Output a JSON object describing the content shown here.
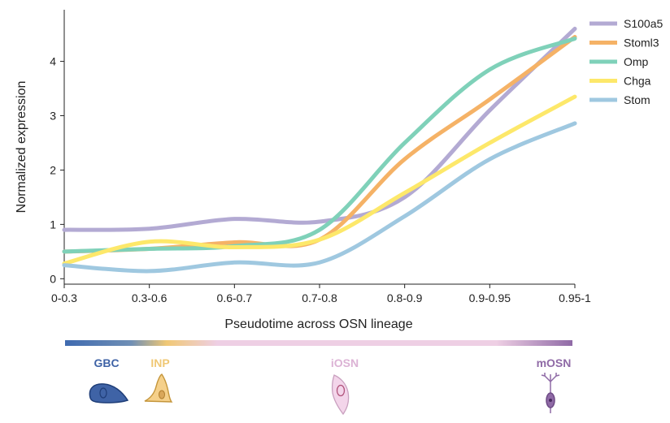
{
  "chart_data": {
    "type": "line",
    "xlabel": "Pseudotime across OSN lineage",
    "ylabel": "Normalized expression",
    "categories": [
      "0-0.3",
      "0.3-0.6",
      "0.6-0.7",
      "0.7-0.8",
      "0.8-0.9",
      "0.9-0.95",
      "0.95-1"
    ],
    "ylim": [
      -0.1,
      4.95
    ],
    "yticks": [
      0,
      1,
      2,
      3,
      4
    ],
    "grid": false,
    "legend_position": "top-right",
    "series": [
      {
        "name": "S100a5",
        "color": "#b3aad3",
        "values": [
          0.9,
          0.92,
          1.1,
          1.05,
          1.5,
          3.1,
          4.6
        ]
      },
      {
        "name": "Stoml3",
        "color": "#f5b266",
        "values": [
          0.5,
          0.55,
          0.67,
          0.72,
          2.2,
          3.3,
          4.45
        ]
      },
      {
        "name": "Omp",
        "color": "#7fd1b9",
        "values": [
          0.5,
          0.55,
          0.6,
          0.9,
          2.5,
          3.85,
          4.42
        ]
      },
      {
        "name": "Chga",
        "color": "#fde86a",
        "values": [
          0.28,
          0.68,
          0.58,
          0.72,
          1.58,
          2.5,
          3.35
        ]
      },
      {
        "name": "Stom",
        "color": "#9fc8e0",
        "values": [
          0.25,
          0.14,
          0.3,
          0.3,
          1.15,
          2.2,
          2.86
        ]
      }
    ]
  },
  "lineage": {
    "bar_colors": [
      "#3f6ab0",
      "#f0c875",
      "#eecfe4",
      "#eecfe4",
      "#8f6aa6"
    ],
    "stages": [
      {
        "label": "GBC",
        "color": "#3f63a6"
      },
      {
        "label": "INP",
        "color": "#f0c875"
      },
      {
        "label": "iOSN",
        "color": "#dcb3d5"
      },
      {
        "label": "mOSN",
        "color": "#8f6aa6"
      }
    ]
  }
}
